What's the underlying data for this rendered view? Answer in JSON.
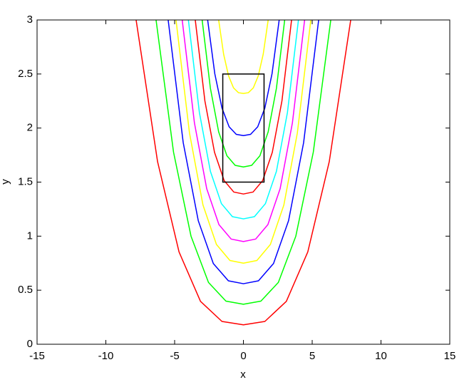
{
  "chart_data": {
    "type": "contour",
    "x_label": "x",
    "y_label": "y",
    "xlim": [
      -15,
      15
    ],
    "ylim": [
      0,
      3
    ],
    "xticks": [
      -15,
      -10,
      -5,
      0,
      5,
      10,
      15
    ],
    "yticks": [
      0,
      0.5,
      1,
      1.5,
      2,
      2.5,
      3
    ],
    "box": {
      "x": [
        -1.5,
        1.5
      ],
      "y": [
        1.5,
        2.5
      ],
      "color": "#000000"
    },
    "series": [
      {
        "color": "#ff0000",
        "x": [
          -7.8,
          -6.24,
          -4.68,
          -3.12,
          -1.56,
          0,
          1.56,
          3.12,
          4.68,
          6.24,
          7.8
        ],
        "values": [
          3,
          1.689,
          0.854,
          0.397,
          0.211,
          0.18,
          0.211,
          0.397,
          0.854,
          1.689,
          3
        ]
      },
      {
        "color": "#00ff00",
        "x": [
          -6.35,
          -5.08,
          -3.81,
          -2.54,
          -1.27,
          0,
          1.27,
          2.54,
          3.81,
          5.08,
          6.35
        ],
        "values": [
          3,
          1.777,
          1.0,
          0.572,
          0.399,
          0.37,
          0.399,
          0.572,
          1.0,
          1.777,
          3
        ]
      },
      {
        "color": "#0000ff",
        "x": [
          -5.47,
          -4.376,
          -3.282,
          -2.188,
          -1.094,
          0,
          1.094,
          2.188,
          3.282,
          4.376,
          5.47
        ],
        "values": [
          3,
          1.865,
          1.143,
          0.747,
          0.587,
          0.56,
          0.587,
          0.747,
          1.143,
          1.865,
          3
        ]
      },
      {
        "color": "#ffff00",
        "x": [
          -4.9,
          -3.92,
          -2.94,
          -1.96,
          -0.98,
          0,
          0.98,
          1.96,
          2.94,
          3.92,
          4.9
        ],
        "values": [
          3,
          1.954,
          1.288,
          0.923,
          0.775,
          0.75,
          0.775,
          0.923,
          1.288,
          1.954,
          3
        ]
      },
      {
        "color": "#ff00ff",
        "x": [
          -4.45,
          -3.56,
          -2.67,
          -1.78,
          -0.89,
          0,
          0.89,
          1.78,
          2.67,
          3.56,
          4.45
        ],
        "values": [
          3,
          2.047,
          1.44,
          1.107,
          0.973,
          0.95,
          0.973,
          1.107,
          1.44,
          2.047,
          3
        ]
      },
      {
        "color": "#00ffff",
        "x": [
          -4,
          -3.2,
          -2.4,
          -1.6,
          -0.8,
          0,
          0.8,
          1.6,
          2.4,
          3.2,
          4
        ],
        "values": [
          3,
          2.144,
          1.6,
          1.301,
          1.18,
          1.16,
          1.18,
          1.301,
          1.6,
          2.144,
          3
        ]
      },
      {
        "color": "#ff0000",
        "x": [
          -3.5,
          -2.8,
          -2.1,
          -1.4,
          -0.7,
          0,
          0.7,
          1.4,
          2.1,
          2.8,
          3.5
        ],
        "values": [
          3,
          2.251,
          1.775,
          1.514,
          1.408,
          1.39,
          1.408,
          1.514,
          1.775,
          2.251,
          3
        ]
      },
      {
        "color": "#00ff00",
        "x": [
          -3,
          -2.4,
          -1.8,
          -1.2,
          -0.6,
          0,
          0.6,
          1.2,
          1.8,
          2.4,
          3
        ],
        "values": [
          3,
          2.368,
          1.965,
          1.744,
          1.655,
          1.64,
          1.655,
          1.744,
          1.965,
          2.368,
          3
        ]
      },
      {
        "color": "#0000ff",
        "x": [
          -2.6,
          -2.08,
          -1.56,
          -1.04,
          -0.52,
          0,
          0.52,
          1.04,
          1.56,
          2.08,
          2.6
        ],
        "values": [
          3,
          2.502,
          2.186,
          2.012,
          1.942,
          1.93,
          1.942,
          2.012,
          2.186,
          2.502,
          3
        ]
      },
      {
        "color": "#ffff00",
        "x": [
          -1.8,
          -1.44,
          -1.08,
          -0.72,
          -0.36,
          0,
          0.36,
          0.72,
          1.08,
          1.44,
          1.8
        ],
        "values": [
          3,
          2.684,
          2.483,
          2.372,
          2.327,
          2.32,
          2.327,
          2.372,
          2.483,
          2.684,
          3
        ]
      }
    ]
  }
}
